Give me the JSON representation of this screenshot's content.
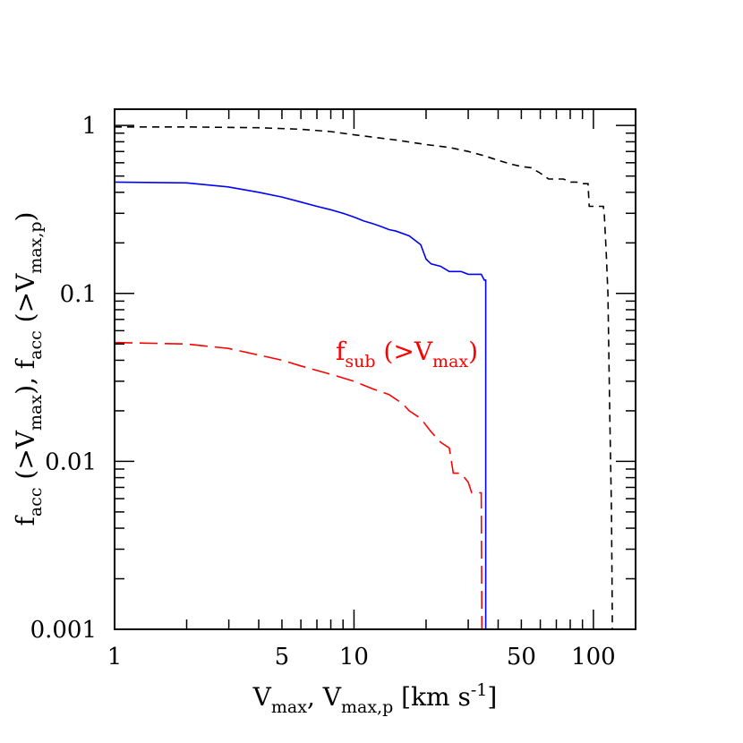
{
  "chart_data": {
    "type": "line",
    "xscale": "log",
    "yscale": "log",
    "xlim": [
      1,
      150
    ],
    "ylim": [
      0.001,
      1.25
    ],
    "x_ticklabels": [
      {
        "value": 1,
        "label": "1"
      },
      {
        "value": 5,
        "label": "5"
      },
      {
        "value": 10,
        "label": "10"
      },
      {
        "value": 50,
        "label": "50"
      },
      {
        "value": 100,
        "label": "100"
      }
    ],
    "y_ticklabels": [
      {
        "value": 0.001,
        "label": "0.001"
      },
      {
        "value": 0.01,
        "label": "0.01"
      },
      {
        "value": 0.1,
        "label": "0.1"
      },
      {
        "value": 1,
        "label": "1"
      }
    ],
    "xlabel": {
      "p1": "V",
      "s1": "max",
      "p2": ", V",
      "s2": "max,p",
      "p3": " [km s",
      "sup": "-1",
      "p4": "]"
    },
    "ylabel": {
      "p1": "f",
      "s1": "acc",
      "p2": " (>V",
      "s2": "max",
      "p3": "), f",
      "s3": "acc",
      "p4": " (>V",
      "s4": "max,p",
      "p5": ")"
    },
    "annotation": {
      "p1": "f",
      "s1": "sub",
      "p2": " (>V",
      "s2": "max",
      "p3": ")",
      "x": 8.5,
      "y": 0.038,
      "color": "#ff0000"
    },
    "grid": false,
    "series": [
      {
        "color": "#000000",
        "dash": "8,6",
        "points": [
          [
            1,
            0.98
          ],
          [
            2,
            0.98
          ],
          [
            4,
            0.97
          ],
          [
            6,
            0.95
          ],
          [
            8,
            0.92
          ],
          [
            10,
            0.88
          ],
          [
            15,
            0.82
          ],
          [
            20,
            0.77
          ],
          [
            25,
            0.74
          ],
          [
            30,
            0.7
          ],
          [
            35,
            0.66
          ],
          [
            40,
            0.62
          ],
          [
            45,
            0.59
          ],
          [
            50,
            0.57
          ],
          [
            55,
            0.56
          ],
          [
            60,
            0.52
          ],
          [
            65,
            0.48
          ],
          [
            75,
            0.48
          ],
          [
            80,
            0.46
          ],
          [
            85,
            0.46
          ],
          [
            90,
            0.45
          ],
          [
            95,
            0.45
          ],
          [
            96,
            0.33
          ],
          [
            110,
            0.33
          ],
          [
            111,
            0.3
          ],
          [
            113,
            0.18
          ],
          [
            115,
            0.1
          ],
          [
            117,
            0.02
          ],
          [
            119,
            0.005
          ],
          [
            120,
            0.001
          ]
        ]
      },
      {
        "color": "#0000ff",
        "dash": "",
        "points": [
          [
            1,
            0.46
          ],
          [
            2,
            0.455
          ],
          [
            3,
            0.43
          ],
          [
            4,
            0.4
          ],
          [
            5,
            0.375
          ],
          [
            6,
            0.35
          ],
          [
            7,
            0.33
          ],
          [
            8,
            0.315
          ],
          [
            9,
            0.3
          ],
          [
            10,
            0.285
          ],
          [
            11,
            0.27
          ],
          [
            12,
            0.26
          ],
          [
            13,
            0.25
          ],
          [
            14,
            0.24
          ],
          [
            15,
            0.235
          ],
          [
            17,
            0.22
          ],
          [
            19,
            0.195
          ],
          [
            20,
            0.16
          ],
          [
            21,
            0.15
          ],
          [
            23,
            0.145
          ],
          [
            25,
            0.135
          ],
          [
            28,
            0.135
          ],
          [
            30,
            0.13
          ],
          [
            34,
            0.13
          ],
          [
            35,
            0.12
          ],
          [
            35.5,
            0.12
          ],
          [
            35.5,
            0.001
          ]
        ]
      },
      {
        "color": "#ff0000",
        "dash": "20,8",
        "points": [
          [
            1,
            0.051
          ],
          [
            2,
            0.05
          ],
          [
            3,
            0.047
          ],
          [
            4,
            0.043
          ],
          [
            5,
            0.04
          ],
          [
            6,
            0.037
          ],
          [
            8,
            0.033
          ],
          [
            10,
            0.03
          ],
          [
            12,
            0.027
          ],
          [
            14,
            0.025
          ],
          [
            16,
            0.022
          ],
          [
            17,
            0.02
          ],
          [
            19,
            0.018
          ],
          [
            21,
            0.015
          ],
          [
            23,
            0.013
          ],
          [
            25,
            0.012
          ],
          [
            26,
            0.0085
          ],
          [
            28,
            0.0085
          ],
          [
            30,
            0.0075
          ],
          [
            31,
            0.0065
          ],
          [
            33,
            0.0065
          ],
          [
            34,
            0.0065
          ],
          [
            34.2,
            0.001
          ]
        ]
      }
    ]
  }
}
